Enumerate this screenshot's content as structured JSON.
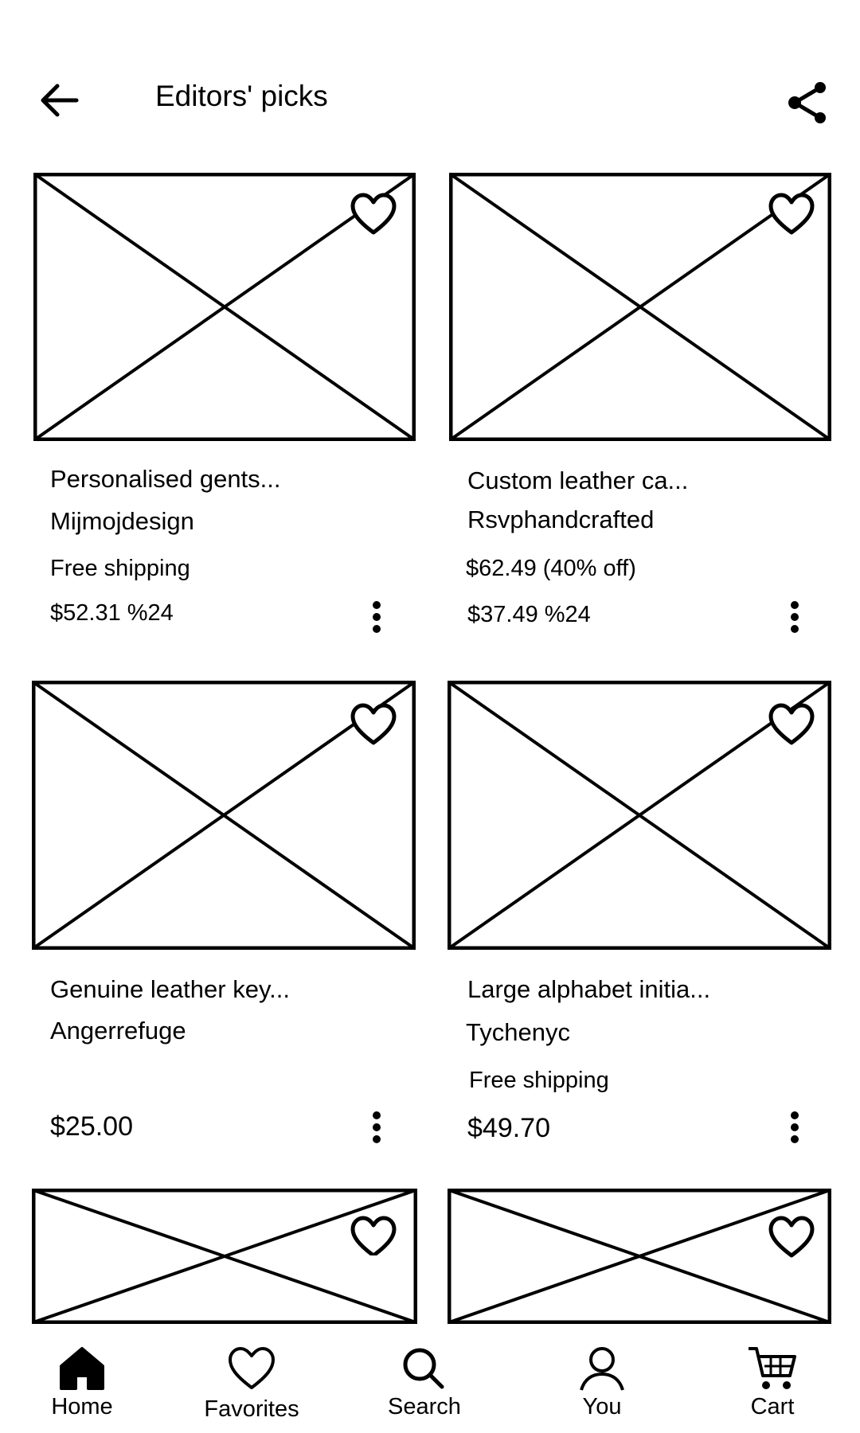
{
  "header": {
    "title": "Editors' picks",
    "back_icon": "arrow-left-icon",
    "share_icon": "share-icon"
  },
  "products": [
    {
      "title": "Personalised gents...",
      "shop": "Mijmojdesign",
      "shipping": "Free shipping",
      "price": "$52.31 %24"
    },
    {
      "title": "Custom leather ca...",
      "shop": "Rsvphandcrafted",
      "shipping": "$62.49 (40% off)",
      "price": "$37.49 %24"
    },
    {
      "title": "Genuine leather key...",
      "shop": "Angerrefuge",
      "shipping": "",
      "price": "$25.00"
    },
    {
      "title": "Large alphabet initia...",
      "shop": "Tychenyc",
      "shipping": "Free shipping",
      "price": "$49.70"
    }
  ],
  "bottom_nav": [
    {
      "label": "Home",
      "icon": "home-icon"
    },
    {
      "label": "Favorites",
      "icon": "heart-icon"
    },
    {
      "label": "Search",
      "icon": "search-icon"
    },
    {
      "label": "You",
      "icon": "user-icon"
    },
    {
      "label": "Cart",
      "icon": "cart-icon"
    }
  ],
  "colors": {
    "background": "#ffffff",
    "foreground": "#000000"
  }
}
